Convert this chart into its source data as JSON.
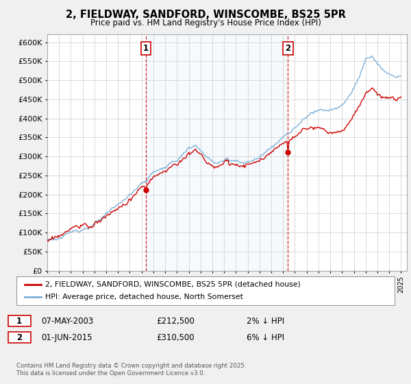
{
  "title": "2, FIELDWAY, SANDFORD, WINSCOMBE, BS25 5PR",
  "subtitle": "Price paid vs. HM Land Registry's House Price Index (HPI)",
  "legend_line1": "2, FIELDWAY, SANDFORD, WINSCOMBE, BS25 5PR (detached house)",
  "legend_line2": "HPI: Average price, detached house, North Somerset",
  "annotation1_label": "1",
  "annotation1_date": "07-MAY-2003",
  "annotation1_price": 212500,
  "annotation2_label": "2",
  "annotation2_date": "01-JUN-2015",
  "annotation2_price": 310500,
  "annotation1_row": "1        07-MAY-2003             £212,500        2% ↓ HPI",
  "annotation2_row": "2        01-JUN-2015             £310,500        6% ↓ HPI",
  "footer": "Contains HM Land Registry data © Crown copyright and database right 2025.\nThis data is licensed under the Open Government Licence v3.0.",
  "hpi_color": "#7fb0d8",
  "price_color": "#cc0000",
  "shade_color": "#ddeef8",
  "background_color": "#f0f0f0",
  "plot_bg_color": "#ffffff",
  "ylim": [
    0,
    620000
  ],
  "sale1_x": 2003.35,
  "sale2_x": 2015.42
}
